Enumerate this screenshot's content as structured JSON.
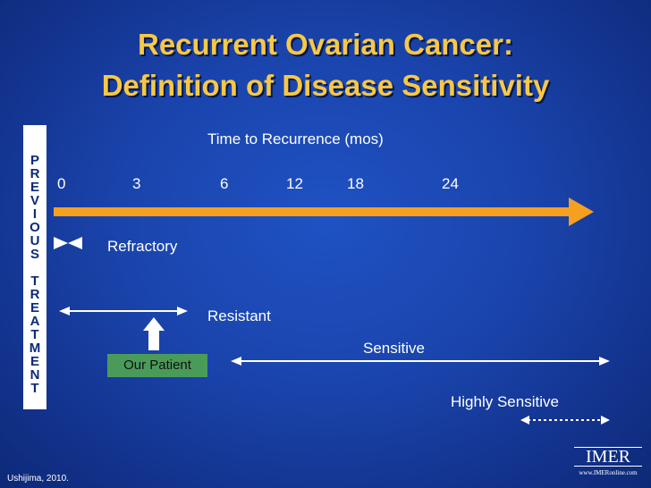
{
  "title": {
    "line1": "Recurrent Ovarian Cancer:",
    "line2": "Definition of Disease Sensitivity"
  },
  "sidebar": {
    "text": "PREVIOUS TREATMENT"
  },
  "axis": {
    "title": "Time to Recurrence (mos)",
    "ticks": [
      "0",
      "3",
      "6",
      "12",
      "18",
      "24"
    ]
  },
  "categories": {
    "refractory": "Refractory",
    "resistant": "Resistant",
    "sensitive": "Sensitive",
    "highly_sensitive": "Highly Sensitive"
  },
  "patient": {
    "label": "Our Patient"
  },
  "footer": {
    "citation": "Ushijima, 2010."
  },
  "logo": {
    "name": "IMER",
    "url": "www.IMERonline.com"
  },
  "colors": {
    "title": "#f7c846",
    "arrow": "#f5a020",
    "patient_box": "#4a9b5a"
  }
}
